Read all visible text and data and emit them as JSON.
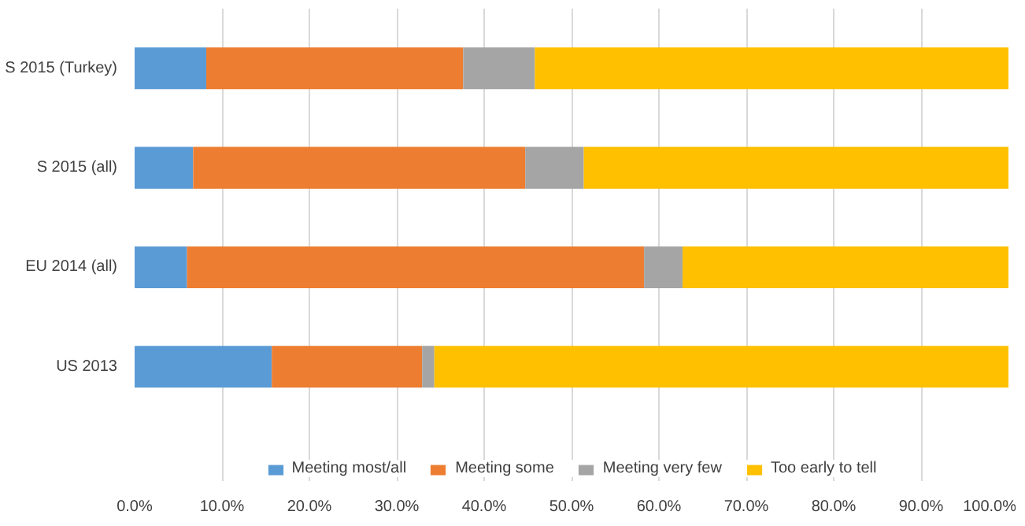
{
  "chart_data": {
    "type": "bar",
    "orientation": "horizontal",
    "stacked": true,
    "categories": [
      "S 2015 (Turkey)",
      "S 2015 (all)",
      "EU 2014 (all)",
      "US 2013"
    ],
    "series": [
      {
        "name": "Meeting most/all",
        "color": "#5b9bd5",
        "values": [
          8.2,
          6.7,
          6.0,
          15.7
        ]
      },
      {
        "name": "Meeting some",
        "color": "#ed7d31",
        "values": [
          29.4,
          38.0,
          52.3,
          17.2
        ]
      },
      {
        "name": "Meeting very few",
        "color": "#a5a5a5",
        "values": [
          8.2,
          6.7,
          4.4,
          1.4
        ]
      },
      {
        "name": "Too early to tell",
        "color": "#ffc000",
        "values": [
          54.2,
          48.6,
          37.3,
          65.7
        ]
      }
    ],
    "xlim": [
      0,
      100
    ],
    "xticks": [
      {
        "value": 0,
        "label": "0.0%"
      },
      {
        "value": 10,
        "label": "10.0%"
      },
      {
        "value": 20,
        "label": "20.0%"
      },
      {
        "value": 30,
        "label": "30.0%"
      },
      {
        "value": 40,
        "label": "40.0%"
      },
      {
        "value": 50,
        "label": "50.0%"
      },
      {
        "value": 60,
        "label": "60.0%"
      },
      {
        "value": 70,
        "label": "70.0%"
      },
      {
        "value": 80,
        "label": "80.0%"
      },
      {
        "value": 90,
        "label": "90.0%"
      },
      {
        "value": 100,
        "label": "100.0%"
      }
    ],
    "grid": "x",
    "legend": "bottom"
  }
}
